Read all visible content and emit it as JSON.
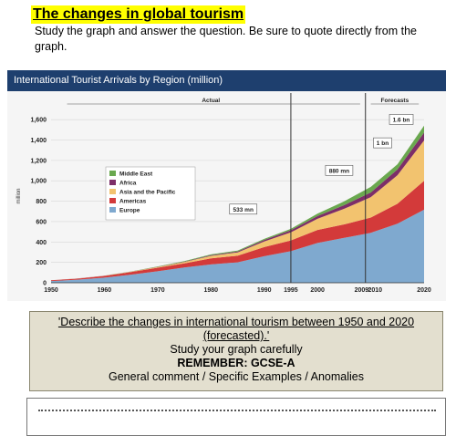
{
  "worksheet": {
    "title": "The changes in global tourism",
    "instruction": "Study the graph and answer the question. Be sure to quote directly from the graph."
  },
  "chart_header": "International Tourist Arrivals by Region (million)",
  "chart_data": {
    "type": "area",
    "title": "International Tourist Arrivals by Region (million)",
    "ylabel": "million",
    "ylim": [
      0,
      1700
    ],
    "yticks": [
      0,
      200,
      400,
      600,
      800,
      1000,
      1200,
      1400,
      1600
    ],
    "ytick_labels": [
      "0",
      "200",
      "400",
      "600",
      "800",
      "1,000",
      "1,200",
      "1,400",
      "1,600"
    ],
    "xtick_labels": [
      "1950",
      "1960",
      "1970",
      "1980",
      "1990",
      "1995",
      "2000",
      "2009'",
      "2010",
      "2020"
    ],
    "x": [
      1950,
      1955,
      1960,
      1965,
      1970,
      1975,
      1980,
      1985,
      1990,
      1995,
      2000,
      2005,
      2010,
      2015,
      2020
    ],
    "series": [
      {
        "name": "Europe",
        "color": "#7fa9cf",
        "values": [
          17,
          30,
          50,
          80,
          113,
          150,
          180,
          200,
          260,
          310,
          390,
          440,
          490,
          580,
          717
        ]
      },
      {
        "name": "Americas",
        "color": "#d33a3a",
        "values": [
          7,
          10,
          17,
          25,
          35,
          40,
          60,
          65,
          90,
          105,
          128,
          133,
          150,
          195,
          282
        ]
      },
      {
        "name": "Asia and the Pacific",
        "color": "#f2c36f",
        "values": [
          0,
          1,
          1,
          3,
          7,
          13,
          24,
          33,
          55,
          80,
          109,
          153,
          200,
          280,
          397
        ]
      },
      {
        "name": "Africa",
        "color": "#7d2e68",
        "values": [
          0,
          1,
          1,
          1,
          2,
          4,
          7,
          9,
          15,
          20,
          27,
          35,
          46,
          57,
          77
        ]
      },
      {
        "name": "Middle East",
        "color": "#6aa84f",
        "values": [
          0,
          0,
          1,
          2,
          3,
          5,
          7,
          9,
          10,
          14,
          24,
          38,
          54,
          50,
          69
        ]
      }
    ],
    "segments": {
      "actual": "Actual",
      "forecasts": "Forecasts"
    },
    "annotations": [
      "533 mn",
      "880 mn",
      "1 bn",
      "1.6 bn"
    ],
    "legend_position": "center-left"
  },
  "question_box": {
    "question": "'Describe the changes in international tourism between 1950 and 2020 (forecasted).'",
    "line1": "Study your graph carefully",
    "line2": "REMEMBER: GCSE-A",
    "line3": "General comment / Specific Examples / Anomalies"
  }
}
